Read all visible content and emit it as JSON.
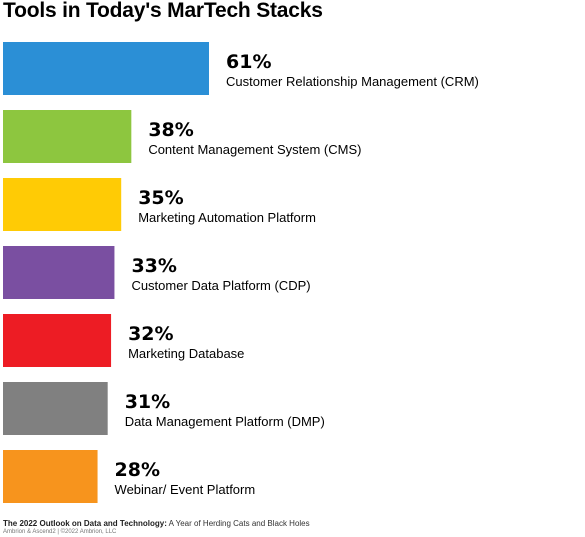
{
  "chart_data": {
    "type": "bar",
    "orientation": "horizontal",
    "title": "Tools in Today's MarTech Stacks",
    "value_suffix": "%",
    "xlim": [
      0,
      100
    ],
    "grid": false,
    "legend": "none",
    "categories": [
      "Customer Relationship Management (CRM)",
      "Content Management System (CMS)",
      "Marketing Automation Platform",
      "Customer Data Platform (CDP)",
      "Marketing Database",
      "Data Management Platform (DMP)",
      "Webinar/ Event Platform"
    ],
    "values": [
      61,
      38,
      35,
      33,
      32,
      31,
      28
    ],
    "colors": [
      "#2B8FD6",
      "#8DC63F",
      "#FFCB05",
      "#7A4FA1",
      "#ED1C24",
      "#808080",
      "#F7941D"
    ]
  },
  "footer": {
    "source_title": "The 2022 Outlook on Data and Technology:",
    "source_subtitle": " A Year of Herding Cats and Black Holes",
    "credit": "Ambrion & Ascend2 | ©2022 Ambrion, LLC"
  }
}
